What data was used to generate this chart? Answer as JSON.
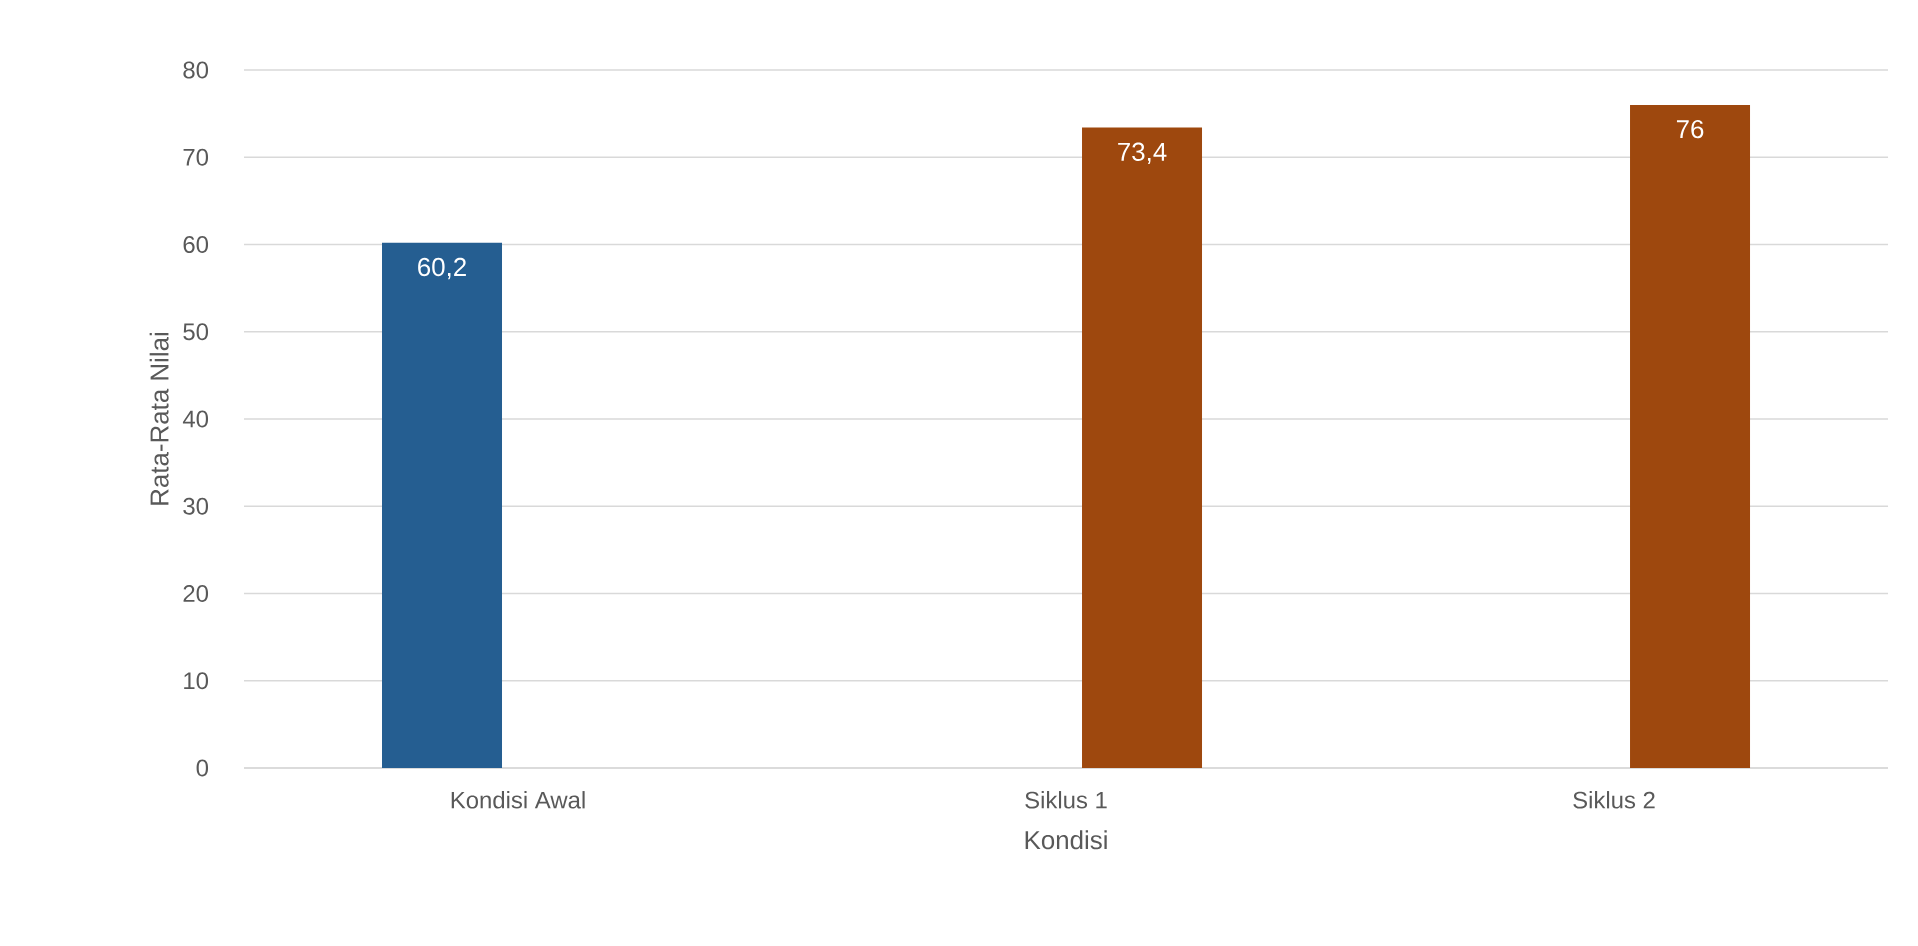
{
  "chart_data": {
    "type": "bar",
    "xlabel": "Kondisi",
    "ylabel": "Rata-Rata Nilai",
    "categories": [
      "Kondisi Awal",
      "Siklus 1",
      "Siklus 2"
    ],
    "series": [
      {
        "color": "#255e91",
        "values": [
          60.2,
          null,
          null
        ],
        "value_labels": [
          "60,2",
          null,
          null
        ]
      },
      {
        "color": "#9e480e",
        "values": [
          null,
          73.4,
          76
        ],
        "value_labels": [
          null,
          "73,4",
          "76"
        ]
      }
    ],
    "ylim": [
      0,
      80
    ],
    "yticks": [
      0,
      10,
      20,
      30,
      40,
      50,
      60,
      70,
      80
    ],
    "grid": "y"
  }
}
